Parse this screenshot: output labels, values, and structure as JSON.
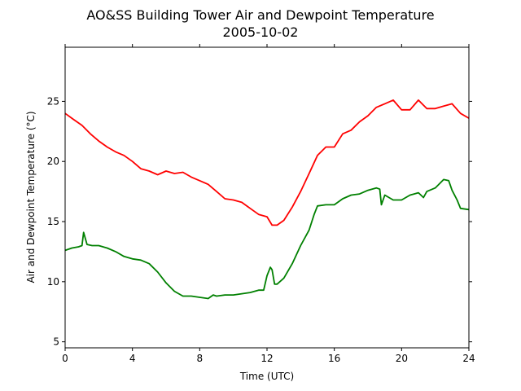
{
  "chart_data": {
    "type": "line",
    "title": "AO&SS Building Tower Air and Dewpoint Temperature",
    "subtitle": "2005-10-02",
    "xlabel": "Time (UTC)",
    "ylabel": "Air and Dewpoint Temperature (°C)",
    "xlim": [
      0,
      24
    ],
    "ylim": [
      4.5,
      29.5
    ],
    "xticks": [
      0,
      4,
      8,
      12,
      16,
      20,
      24
    ],
    "yticks": [
      5,
      10,
      15,
      20,
      25
    ],
    "grid": false,
    "series": [
      {
        "color": "#ff0000",
        "x": [
          0,
          0.5,
          1,
          1.5,
          2,
          2.5,
          3,
          3.5,
          4,
          4.5,
          5,
          5.5,
          6,
          6.5,
          7,
          7.5,
          8,
          8.5,
          9,
          9.5,
          10,
          10.5,
          11,
          11.5,
          12,
          12.3,
          12.6,
          13,
          13.5,
          14,
          14.5,
          15,
          15.5,
          16,
          16.5,
          17,
          17.5,
          18,
          18.5,
          19,
          19.5,
          20,
          20.5,
          21,
          21.5,
          22,
          22.5,
          23,
          23.5,
          24
        ],
        "values": [
          24.0,
          23.5,
          23.0,
          22.3,
          21.7,
          21.2,
          20.8,
          20.5,
          20.0,
          19.4,
          19.2,
          18.9,
          19.2,
          19.0,
          19.1,
          18.7,
          18.4,
          18.1,
          17.5,
          16.9,
          16.8,
          16.6,
          16.1,
          15.6,
          15.4,
          14.7,
          14.7,
          15.1,
          16.2,
          17.5,
          19.0,
          20.5,
          21.2,
          21.2,
          22.3,
          22.6,
          23.3,
          23.8,
          24.5,
          24.8,
          25.1,
          24.3,
          24.3,
          25.1,
          24.4,
          24.4,
          24.6,
          24.8,
          24.0,
          23.6
        ]
      },
      {
        "color": "#008000",
        "x": [
          0,
          0.4,
          0.8,
          1.0,
          1.1,
          1.3,
          1.6,
          2,
          2.5,
          3,
          3.5,
          4,
          4.5,
          5,
          5.5,
          6,
          6.5,
          7,
          7.5,
          8,
          8.5,
          8.8,
          9,
          9.5,
          10,
          10.5,
          11,
          11.5,
          11.8,
          12,
          12.2,
          12.3,
          12.45,
          12.6,
          13,
          13.5,
          14,
          14.5,
          14.8,
          15,
          15.5,
          16,
          16.5,
          17,
          17.5,
          18,
          18.5,
          18.7,
          18.8,
          19,
          19.5,
          20,
          20.5,
          21,
          21.3,
          21.5,
          22,
          22.5,
          22.8,
          23,
          23.3,
          23.5,
          24
        ],
        "values": [
          12.6,
          12.8,
          12.9,
          13.0,
          14.1,
          13.1,
          13.0,
          13.0,
          12.8,
          12.5,
          12.1,
          11.9,
          11.8,
          11.5,
          10.8,
          9.9,
          9.2,
          8.8,
          8.8,
          8.7,
          8.6,
          8.9,
          8.8,
          8.9,
          8.9,
          9.0,
          9.1,
          9.3,
          9.3,
          10.5,
          11.2,
          11.0,
          9.8,
          9.8,
          10.3,
          11.5,
          13.0,
          14.3,
          15.6,
          16.3,
          16.4,
          16.4,
          16.9,
          17.2,
          17.3,
          17.6,
          17.8,
          17.7,
          16.4,
          17.2,
          16.8,
          16.8,
          17.2,
          17.4,
          17.0,
          17.5,
          17.8,
          18.5,
          18.4,
          17.6,
          16.8,
          16.1,
          16.0
        ]
      }
    ]
  }
}
